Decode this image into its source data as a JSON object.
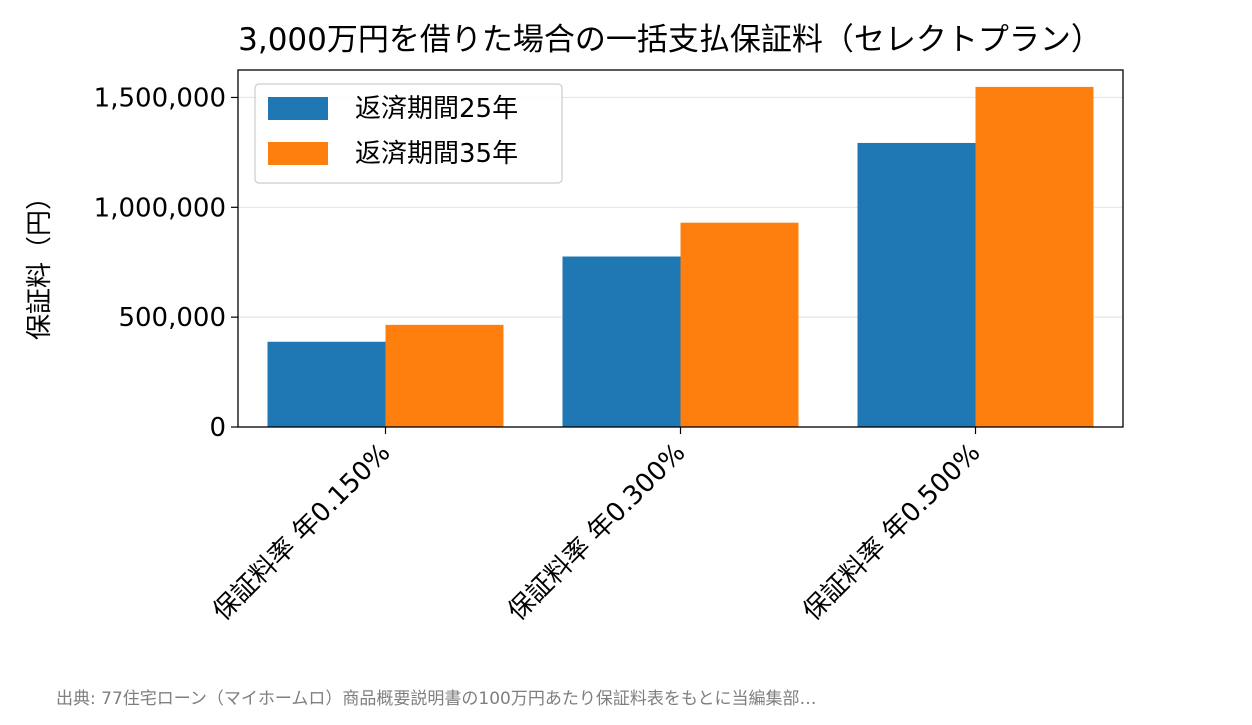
{
  "chart_data": {
    "type": "bar",
    "title": "3,000万円を借りた場合の一括支払保証料（セレクトプラン）",
    "xlabel": "",
    "ylabel": "保証料（円）",
    "categories": [
      "保証料率 年0.150%",
      "保証料率 年0.300%",
      "保証料率 年0.500%"
    ],
    "series": [
      {
        "name": "返済期間25年",
        "values": [
          388000,
          776000,
          1293000
        ],
        "color": "#1f77b4"
      },
      {
        "name": "返済期間35年",
        "values": [
          465000,
          930000,
          1548000
        ],
        "color": "#ff7f0e"
      }
    ],
    "ylim": [
      0,
      1625000
    ],
    "yticks": [
      0,
      500000,
      1000000,
      1500000
    ],
    "ytick_labels": [
      "0",
      "500,000",
      "1,000,000",
      "1,500,000"
    ],
    "grid": "y-major",
    "legend_position": "upper-left"
  },
  "source_note": "出典: 77住宅ローン（マイホームロ）商品概要説明書の100万円あたり保証料表をもとに当編集部…"
}
